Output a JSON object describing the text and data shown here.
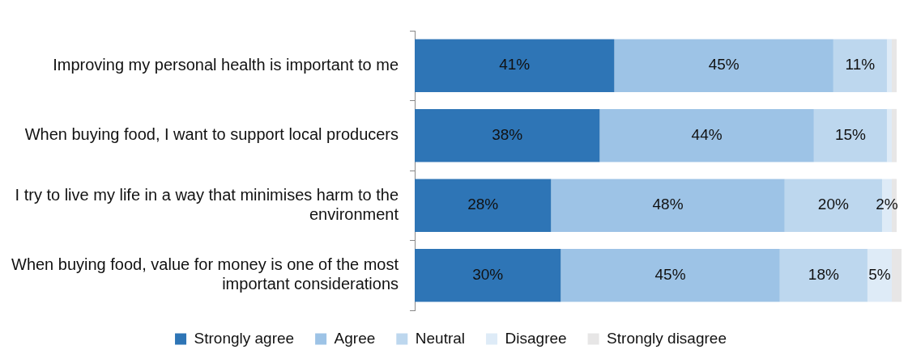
{
  "chart_data": {
    "type": "bar",
    "orientation": "horizontal",
    "stacked": true,
    "categories": [
      "Improving my personal health is important to me",
      "When buying food, I want to support local producers",
      "I try to live my life in a way that minimises harm to the environment",
      "When buying food, value for money is one of the most important considerations"
    ],
    "series": [
      {
        "name": "Strongly agree",
        "color": "#2e75b6",
        "values": [
          41,
          38,
          28,
          30
        ],
        "value_labels": [
          "41%",
          "38%",
          "28%",
          "30%"
        ]
      },
      {
        "name": "Agree",
        "color": "#9dc3e6",
        "values": [
          45,
          44,
          48,
          45
        ],
        "value_labels": [
          "45%",
          "44%",
          "48%",
          "45%"
        ]
      },
      {
        "name": "Neutral",
        "color": "#bdd7ee",
        "values": [
          11,
          15,
          20,
          18
        ],
        "value_labels": [
          "11%",
          "15%",
          "20%",
          "18%"
        ]
      },
      {
        "name": "Disagree",
        "color": "#deebf7",
        "values": [
          1,
          1,
          2,
          5
        ],
        "value_labels": [
          null,
          null,
          "2%",
          "5%"
        ]
      },
      {
        "name": "Strongly disagree",
        "color": "#e7e6e6",
        "values": [
          1,
          1,
          1,
          2
        ],
        "value_labels": [
          null,
          null,
          null,
          null
        ]
      }
    ],
    "xlim": [
      0,
      100
    ],
    "tick_labels": "y",
    "grid": false,
    "legend": "bottom"
  }
}
